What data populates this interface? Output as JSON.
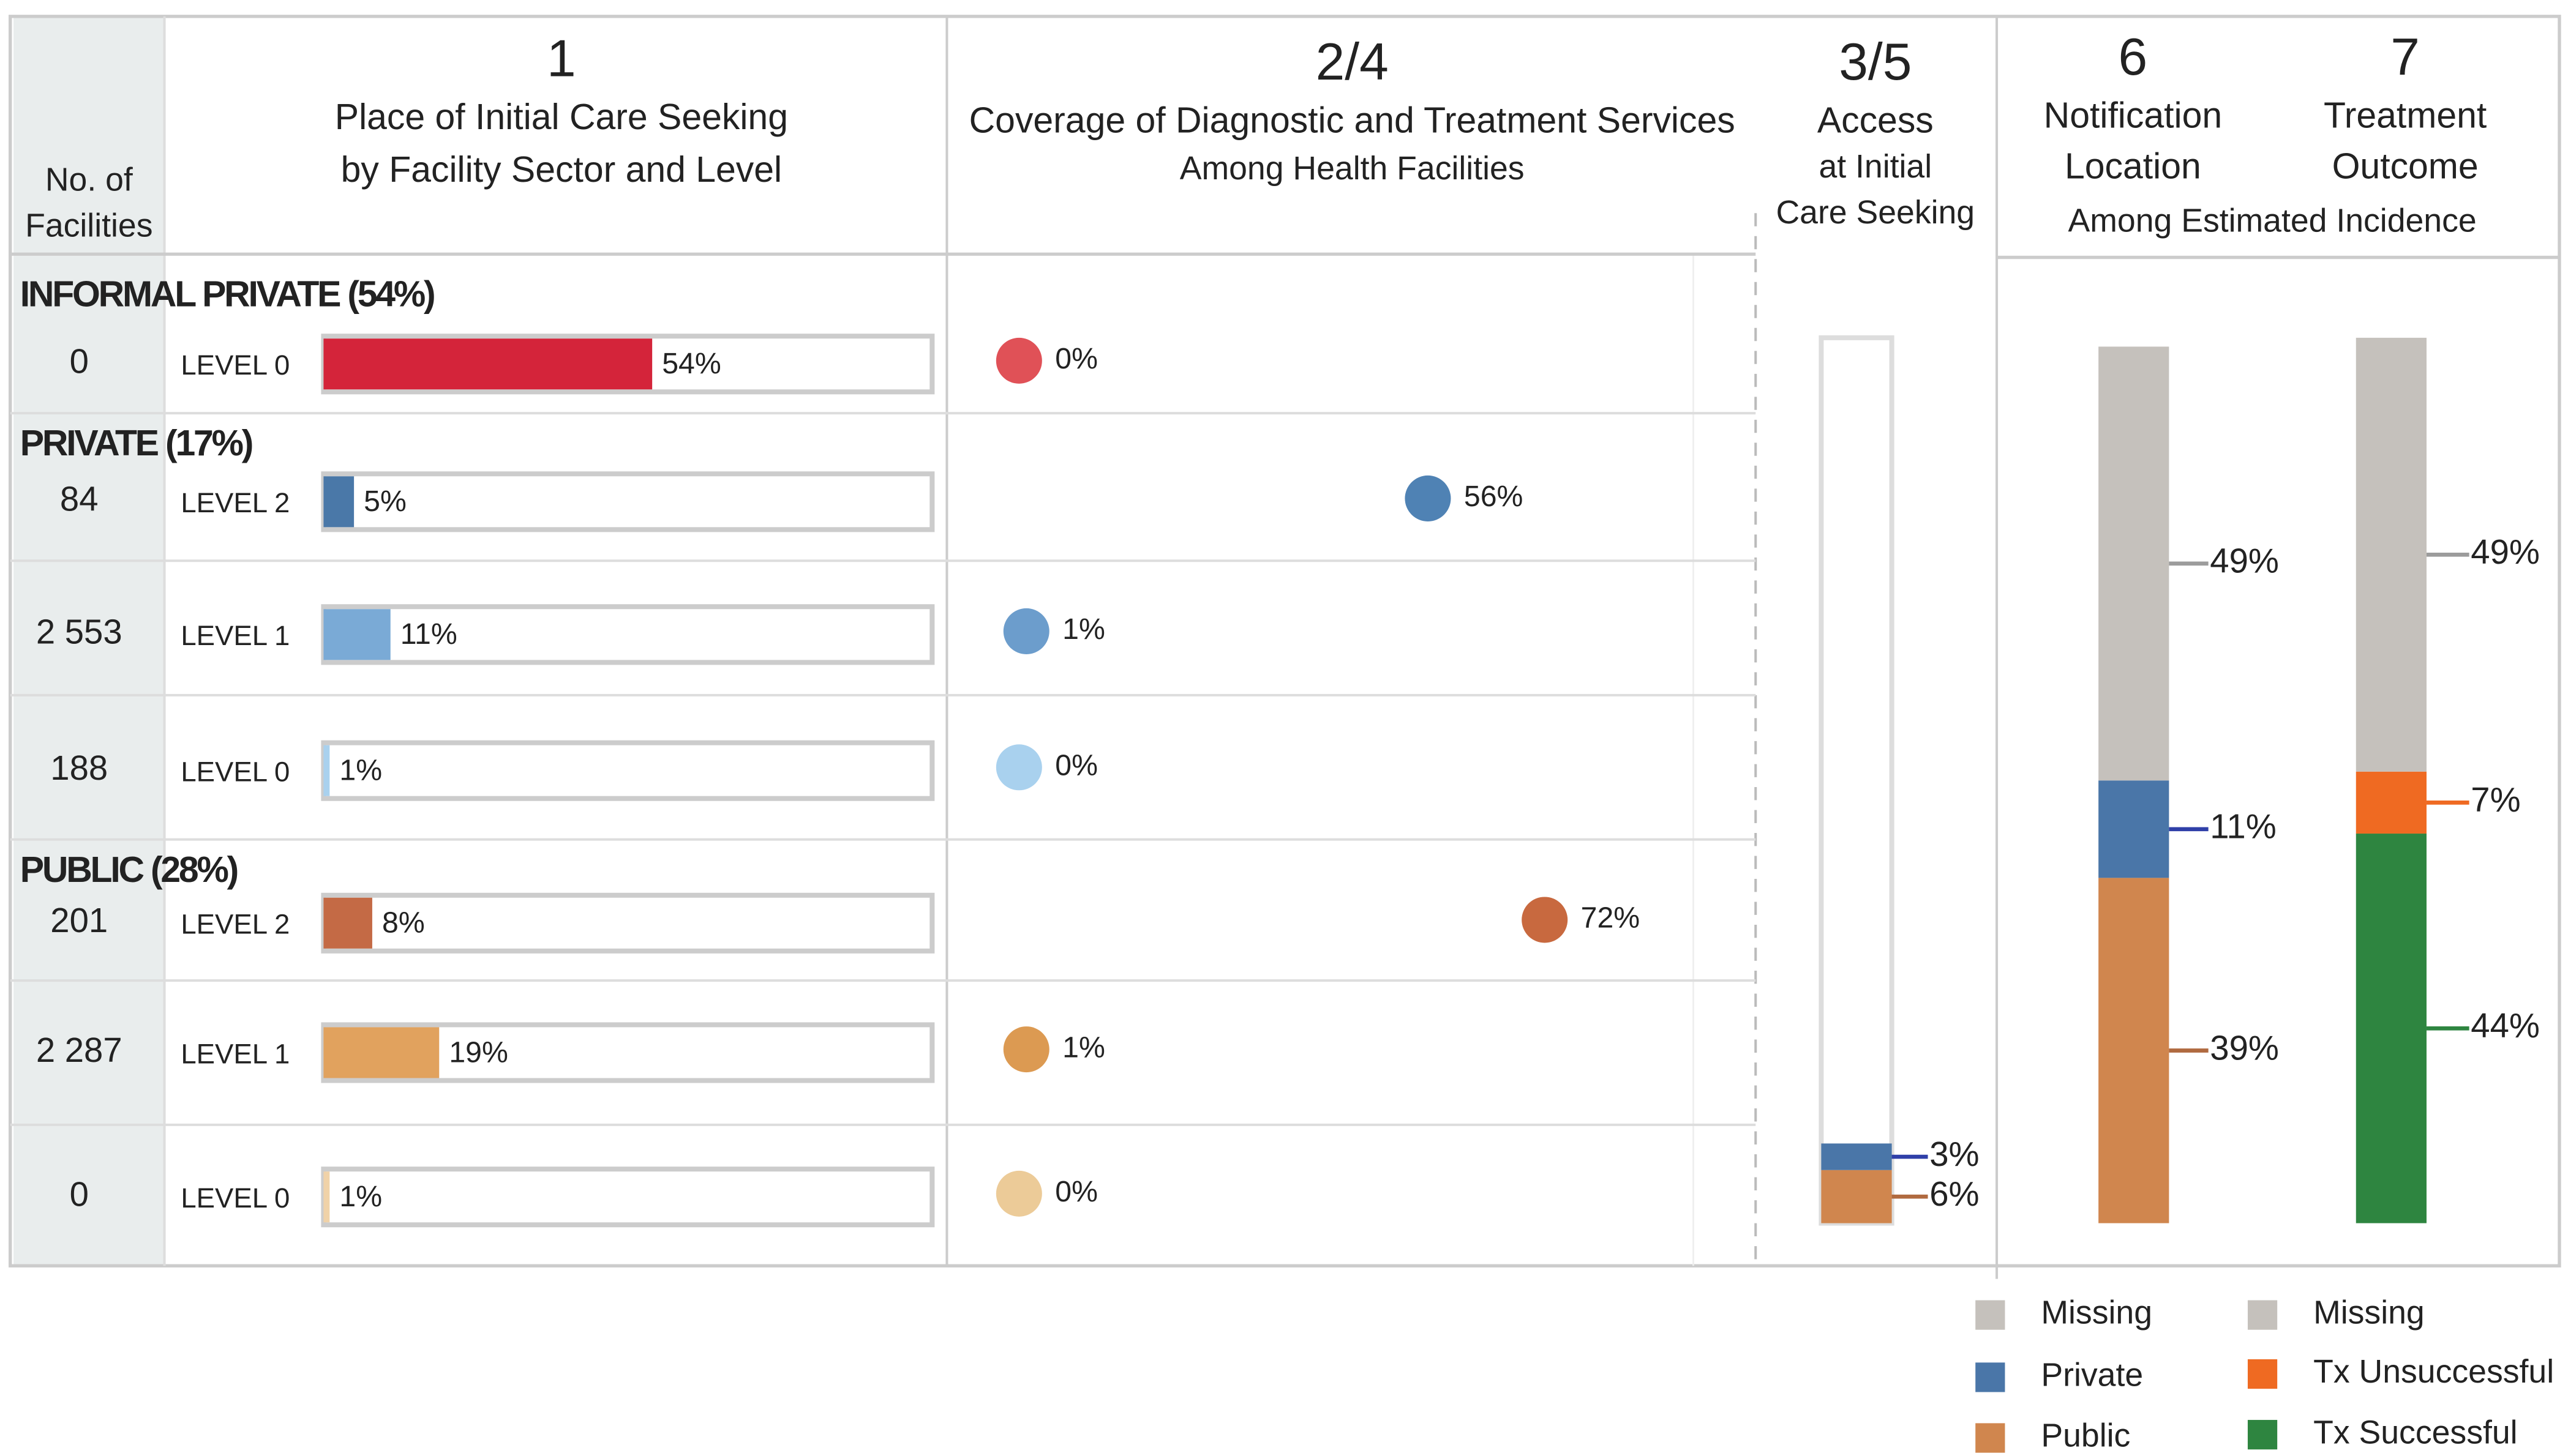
{
  "header": {
    "facilities_label": [
      "No. of",
      "Facilities"
    ],
    "col1": {
      "number": "1",
      "lines": [
        "Place of Initial  Care Seeking",
        "by Facility Sector and Level"
      ]
    },
    "col2": {
      "number": "2/4",
      "lines": [
        "Coverage of Diagnostic and Treatment Services",
        "Among Health Facilities"
      ]
    },
    "col3": {
      "number": "3/5",
      "lines": [
        "Access",
        "at Initial",
        "Care Seeking"
      ]
    },
    "col6": {
      "number": "6",
      "lines": [
        "Notification",
        "Location"
      ]
    },
    "col7": {
      "number": "7",
      "lines": [
        "Treatment",
        "Outcome"
      ]
    },
    "shared_subtitle": "Among Estimated Incidence"
  },
  "care_seeking_xlim": [
    0,
    100
  ],
  "coverage_xlim": [
    0,
    100
  ],
  "sectors": [
    {
      "name": "INFORMAL PRIVATE (54%)",
      "color": "#b3172b",
      "levels": [
        {
          "facilities": 0,
          "level": "LEVEL 0",
          "color": "#d4243a",
          "dot_color": "#e05157",
          "care_seeking": 54,
          "care_seeking_label": "54%",
          "coverage": 0,
          "coverage_label": "0%"
        }
      ]
    },
    {
      "name": "PRIVATE (17%)",
      "color": "#2b62a8",
      "levels": [
        {
          "facilities": 84,
          "level": "LEVEL 2",
          "color": "#4a78a8",
          "dot_color": "#4f82b4",
          "care_seeking": 5,
          "care_seeking_label": "5%",
          "coverage": 56,
          "coverage_label": "56%"
        },
        {
          "facilities": {
            "value": 2553,
            "label": "2 553"
          },
          "level": "LEVEL 1",
          "color": "#7aaad6",
          "dot_color": "#6c9dcc",
          "care_seeking": 11,
          "care_seeking_label": "11%",
          "coverage": 1,
          "coverage_label": "1%"
        },
        {
          "facilities": 188,
          "level": "LEVEL 0",
          "color": "#a9d1ee",
          "dot_color": "#a9d1ee",
          "care_seeking": 1,
          "care_seeking_label": "1%",
          "coverage": 0,
          "coverage_label": "0%"
        }
      ]
    },
    {
      "name": "PUBLIC (28%)",
      "color": "#7a4a18",
      "levels": [
        {
          "facilities": 201,
          "level": "LEVEL 2",
          "color": "#c46a45",
          "dot_color": "#c8693f",
          "care_seeking": 8,
          "care_seeking_label": "8%",
          "coverage": 72,
          "coverage_label": "72%"
        },
        {
          "facilities": {
            "value": 2287,
            "label": "2 287"
          },
          "level": "LEVEL 1",
          "color": "#e1a25e",
          "dot_color": "#dc9a52",
          "care_seeking": 19,
          "care_seeking_label": "19%",
          "coverage": 1,
          "coverage_label": "1%"
        },
        {
          "facilities": 0,
          "level": "LEVEL 0",
          "color": "#f0d2a8",
          "dot_color": "#eccb98",
          "care_seeking": 1,
          "care_seeking_label": "1%",
          "coverage": 0,
          "coverage_label": "0%"
        }
      ]
    }
  ],
  "stack_lim": [
    0,
    100
  ],
  "access": {
    "segments": [
      {
        "value": 3,
        "label": "3%",
        "color": "#4a76a8",
        "line_color": "#2f3fa8"
      },
      {
        "value": 6,
        "label": "6%",
        "color": "#d0864e",
        "line_color": "#b06a40"
      }
    ]
  },
  "notification": {
    "segments": [
      {
        "name": "Missing",
        "value": 49,
        "label": "49%",
        "color": "#c5c1bc",
        "line_color": "#9c9c9c"
      },
      {
        "name": "Private",
        "value": 11,
        "label": "11%",
        "color": "#4a76a8",
        "line_color": "#2f3fa8"
      },
      {
        "name": "Public",
        "value": 39,
        "label": "39%",
        "color": "#d0864e",
        "line_color": "#b06a40"
      }
    ]
  },
  "treatment": {
    "segments": [
      {
        "name": "Missing",
        "value": 49,
        "label": "49%",
        "color": "#c5c1bc",
        "line_color": "#9c9c9c"
      },
      {
        "name": "Tx Unsuccessful",
        "value": 7,
        "label": "7%",
        "color": "#ef6a22",
        "line_color": "#ef6a22"
      },
      {
        "name": "Tx Successful",
        "value": 44,
        "label": "44%",
        "color": "#2e8540",
        "line_color": "#2e8540"
      }
    ]
  }
}
